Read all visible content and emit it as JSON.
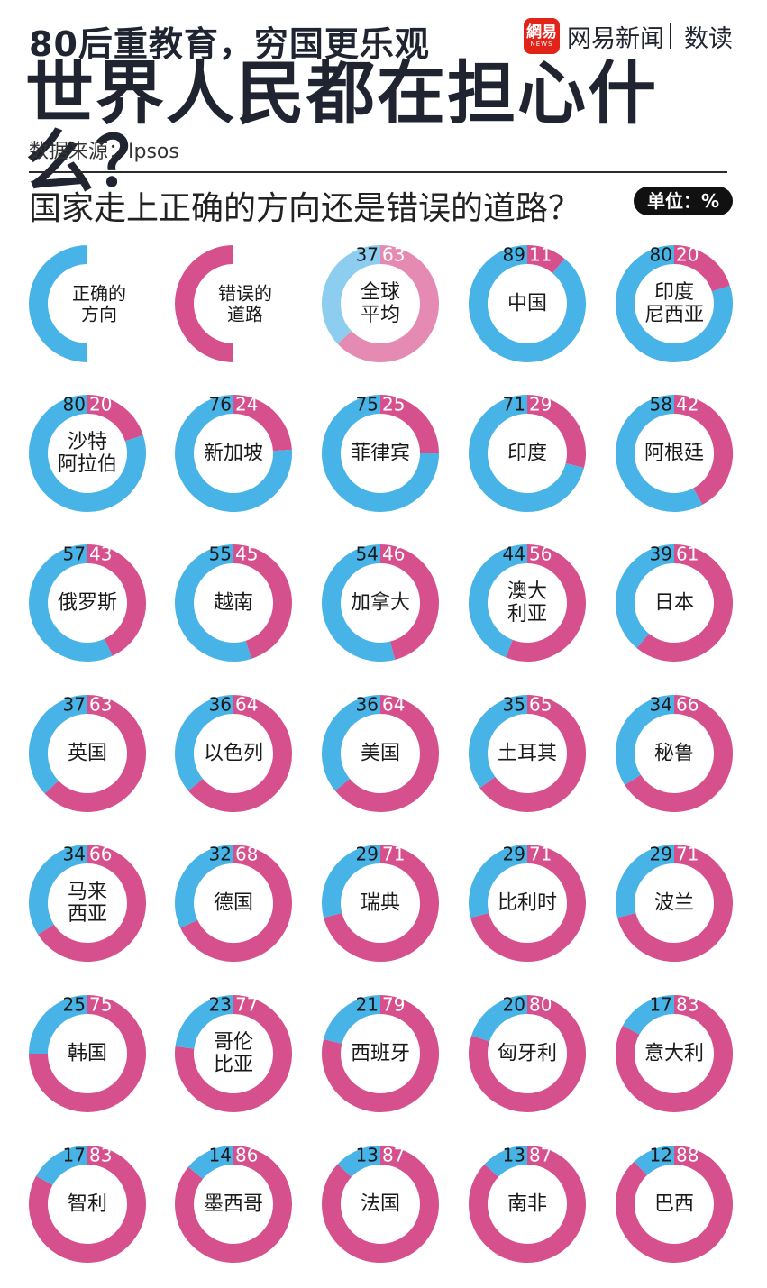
{
  "header": {
    "subtitle": "80后重教育，穷国更乐观",
    "title": "世界人民都在担心什么？",
    "source": "数据来源：Ipsos",
    "question": "国家走上正确的方向还是错误的道路？",
    "unit": "单位：%"
  },
  "logo": {
    "mark_top": "網易",
    "mark_bottom": "NEWS",
    "brand": "网易新闻",
    "section": "数读"
  },
  "colors": {
    "right": "#48b3e6",
    "wrong": "#d5508c",
    "avg_right": "#8dcdf0",
    "avg_wrong": "#e48ab3"
  },
  "chart_data": {
    "type": "donut",
    "unit": "%",
    "legend": [
      {
        "name": "正确的方向",
        "line1": "正确的",
        "line2": "方向"
      },
      {
        "name": "错误的道路",
        "line1": "错误的",
        "line2": "道路"
      }
    ],
    "countries": [
      {
        "name": "全球平均",
        "lines": [
          "全球",
          "平均"
        ],
        "right": 37,
        "wrong": 63,
        "highlight": true
      },
      {
        "name": "中国",
        "lines": [
          "中国"
        ],
        "right": 89,
        "wrong": 11
      },
      {
        "name": "印度尼西亚",
        "lines": [
          "印度",
          "尼西亚"
        ],
        "right": 80,
        "wrong": 20
      },
      {
        "name": "沙特阿拉伯",
        "lines": [
          "沙特",
          "阿拉伯"
        ],
        "right": 80,
        "wrong": 20
      },
      {
        "name": "新加坡",
        "lines": [
          "新加坡"
        ],
        "right": 76,
        "wrong": 24
      },
      {
        "name": "菲律宾",
        "lines": [
          "菲律宾"
        ],
        "right": 75,
        "wrong": 25
      },
      {
        "name": "印度",
        "lines": [
          "印度"
        ],
        "right": 71,
        "wrong": 29
      },
      {
        "name": "阿根廷",
        "lines": [
          "阿根廷"
        ],
        "right": 58,
        "wrong": 42
      },
      {
        "name": "俄罗斯",
        "lines": [
          "俄罗斯"
        ],
        "right": 57,
        "wrong": 43
      },
      {
        "name": "越南",
        "lines": [
          "越南"
        ],
        "right": 55,
        "wrong": 45
      },
      {
        "name": "加拿大",
        "lines": [
          "加拿大"
        ],
        "right": 54,
        "wrong": 46
      },
      {
        "name": "澳大利亚",
        "lines": [
          "澳大",
          "利亚"
        ],
        "right": 44,
        "wrong": 56
      },
      {
        "name": "日本",
        "lines": [
          "日本"
        ],
        "right": 39,
        "wrong": 61
      },
      {
        "name": "英国",
        "lines": [
          "英国"
        ],
        "right": 37,
        "wrong": 63
      },
      {
        "name": "以色列",
        "lines": [
          "以色列"
        ],
        "right": 36,
        "wrong": 64
      },
      {
        "name": "美国",
        "lines": [
          "美国"
        ],
        "right": 36,
        "wrong": 64
      },
      {
        "name": "土耳其",
        "lines": [
          "土耳其"
        ],
        "right": 35,
        "wrong": 65
      },
      {
        "name": "秘鲁",
        "lines": [
          "秘鲁"
        ],
        "right": 34,
        "wrong": 66
      },
      {
        "name": "马来西亚",
        "lines": [
          "马来",
          "西亚"
        ],
        "right": 34,
        "wrong": 66
      },
      {
        "name": "德国",
        "lines": [
          "德国"
        ],
        "right": 32,
        "wrong": 68
      },
      {
        "name": "瑞典",
        "lines": [
          "瑞典"
        ],
        "right": 29,
        "wrong": 71
      },
      {
        "name": "比利时",
        "lines": [
          "比利时"
        ],
        "right": 29,
        "wrong": 71
      },
      {
        "name": "波兰",
        "lines": [
          "波兰"
        ],
        "right": 29,
        "wrong": 71
      },
      {
        "name": "韩国",
        "lines": [
          "韩国"
        ],
        "right": 25,
        "wrong": 75
      },
      {
        "name": "哥伦比亚",
        "lines": [
          "哥伦",
          "比亚"
        ],
        "right": 23,
        "wrong": 77
      },
      {
        "name": "西班牙",
        "lines": [
          "西班牙"
        ],
        "right": 21,
        "wrong": 79
      },
      {
        "name": "匈牙利",
        "lines": [
          "匈牙利"
        ],
        "right": 20,
        "wrong": 80
      },
      {
        "name": "意大利",
        "lines": [
          "意大利"
        ],
        "right": 17,
        "wrong": 83
      },
      {
        "name": "智利",
        "lines": [
          "智利"
        ],
        "right": 17,
        "wrong": 83
      },
      {
        "name": "墨西哥",
        "lines": [
          "墨西哥"
        ],
        "right": 14,
        "wrong": 86
      },
      {
        "name": "法国",
        "lines": [
          "法国"
        ],
        "right": 13,
        "wrong": 87
      },
      {
        "name": "南非",
        "lines": [
          "南非"
        ],
        "right": 13,
        "wrong": 87
      },
      {
        "name": "巴西",
        "lines": [
          "巴西"
        ],
        "right": 12,
        "wrong": 88
      }
    ]
  }
}
